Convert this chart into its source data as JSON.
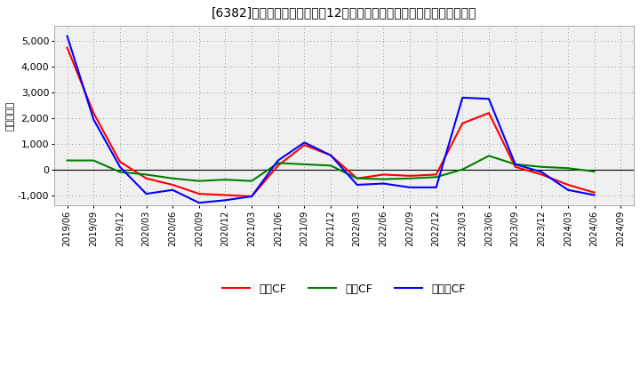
{
  "title": "[6382]　キャッシュフローの12か月移動合計の対前年同期増減額の推移",
  "ylabel": "（百万円）",
  "background_color": "#ffffff",
  "plot_bg_color": "#f0f0f0",
  "grid_color": "#aaaaaa",
  "ylim": [
    -1400,
    5600
  ],
  "yticks": [
    -1000,
    0,
    1000,
    2000,
    3000,
    4000,
    5000
  ],
  "dates": [
    "2019/06",
    "2019/09",
    "2019/12",
    "2020/03",
    "2020/06",
    "2020/09",
    "2020/12",
    "2021/03",
    "2021/06",
    "2021/09",
    "2021/12",
    "2022/03",
    "2022/06",
    "2022/09",
    "2022/12",
    "2023/03",
    "2023/06",
    "2023/09",
    "2023/12",
    "2024/03",
    "2024/06",
    "2024/09"
  ],
  "eigyo_cf": [
    4750,
    2200,
    300,
    -350,
    -600,
    -950,
    -1000,
    -1050,
    150,
    950,
    550,
    -350,
    -200,
    -250,
    -200,
    1800,
    2200,
    100,
    -200,
    -600,
    -900,
    null
  ],
  "toshi_cf": [
    350,
    350,
    -100,
    -200,
    -350,
    -450,
    -400,
    -450,
    250,
    200,
    150,
    -350,
    -380,
    -350,
    -300,
    0,
    530,
    200,
    100,
    50,
    -80,
    null
  ],
  "free_cf": [
    5200,
    1950,
    100,
    -950,
    -800,
    -1300,
    -1200,
    -1050,
    350,
    1050,
    550,
    -600,
    -550,
    -700,
    -700,
    2800,
    2750,
    200,
    -100,
    -800,
    -1000,
    null
  ],
  "eigyo_color": "#ff0000",
  "toshi_color": "#008000",
  "free_color": "#0000ff",
  "line_width": 1.5,
  "legend_labels": [
    "営業CF",
    "投資CF",
    "フリーCF"
  ]
}
